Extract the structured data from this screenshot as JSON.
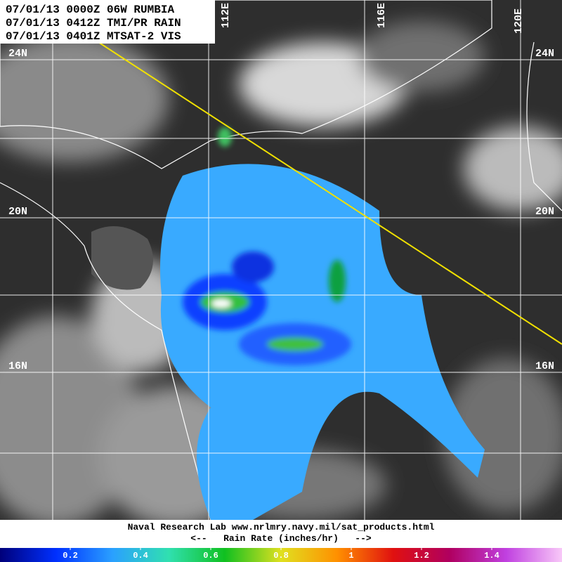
{
  "header": {
    "lines": [
      "07/01/13 0000Z 06W RUMBIA",
      "07/01/13 0412Z TMI/PR RAIN",
      "07/01/13 0401Z MTSAT-2 VIS"
    ]
  },
  "map": {
    "longitude_labels": [
      "112E",
      "116E",
      "120E"
    ],
    "latitude_labels": [
      "24N",
      "20N",
      "16N"
    ]
  },
  "footer": {
    "credit": "Naval Research Lab  www.nrlmry.navy.mil/sat_products.html",
    "scale_caption": "<--   Rain Rate (inches/hr)   -->"
  },
  "colorbar": {
    "ticks": [
      0.2,
      0.4,
      0.6,
      0.8,
      1,
      1.2,
      1.4
    ]
  }
}
